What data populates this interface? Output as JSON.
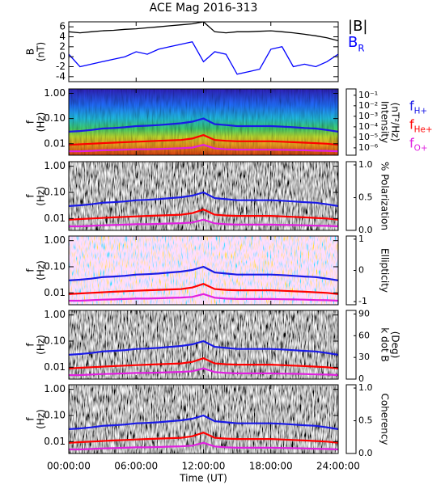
{
  "chart_data": [
    {
      "type": "line",
      "title": "ACE Mag 2016-313",
      "ylabel": [
        "B",
        "(nT)"
      ],
      "x": [
        0,
        1,
        2,
        3,
        4,
        5,
        6,
        7,
        8,
        9,
        10,
        11,
        12,
        13,
        14,
        15,
        16,
        17,
        18,
        19,
        20,
        21,
        22,
        23,
        24
      ],
      "ylim": [
        -5,
        7
      ],
      "yticks": [
        -4,
        -2,
        0,
        2,
        4,
        6
      ],
      "series": [
        {
          "name": "|B|",
          "color": "#000000",
          "values": [
            5,
            4.8,
            5,
            5.2,
            5.3,
            5.5,
            5.6,
            5.8,
            6,
            6.2,
            6.4,
            6.6,
            7,
            5,
            4.8,
            5,
            5,
            5.1,
            5.2,
            5,
            4.8,
            4.5,
            4.2,
            3.8,
            3.2
          ]
        },
        {
          "name": "B",
          "name_subscript": "R",
          "color": "#0000ff",
          "values": [
            0.5,
            -2,
            -1.5,
            -1,
            -0.5,
            0,
            1,
            0.5,
            1.5,
            2,
            2.5,
            3,
            -1,
            1,
            0.5,
            -3.5,
            -3,
            -2.5,
            1.5,
            2,
            -2,
            -1.5,
            -2,
            -1,
            0.5
          ]
        }
      ]
    },
    {
      "type": "spectrogram",
      "ylabel": [
        "f",
        "(Hz)"
      ],
      "ylog": true,
      "ylim": [
        0.0035,
        1.5
      ],
      "yticks": [
        {
          "value": 0.01,
          "label": "0.01"
        },
        {
          "value": 0.1,
          "label": "0.10"
        },
        {
          "value": 1,
          "label": "1.00"
        }
      ],
      "x": [
        0,
        1,
        2,
        3,
        4,
        5,
        6,
        7,
        8,
        9,
        10,
        11,
        12,
        13,
        14,
        15,
        16,
        17,
        18,
        19,
        20,
        21,
        22,
        23,
        24
      ],
      "series": [
        {
          "name": "f",
          "name_subscript": "H+",
          "color": "#1a1ae6",
          "values": [
            0.03,
            0.032,
            0.035,
            0.04,
            0.042,
            0.045,
            0.05,
            0.052,
            0.055,
            0.06,
            0.065,
            0.075,
            0.1,
            0.06,
            0.055,
            0.05,
            0.05,
            0.05,
            0.05,
            0.048,
            0.045,
            0.042,
            0.04,
            0.035,
            0.03
          ]
        },
        {
          "name": "f",
          "name_subscript": "He+",
          "color": "#ff0000",
          "values": [
            0.009,
            0.0095,
            0.01,
            0.0105,
            0.011,
            0.0115,
            0.012,
            0.0125,
            0.013,
            0.0135,
            0.014,
            0.016,
            0.022,
            0.014,
            0.013,
            0.0125,
            0.0125,
            0.0125,
            0.0125,
            0.012,
            0.0115,
            0.011,
            0.0105,
            0.01,
            0.009
          ]
        },
        {
          "name": "f",
          "name_subscript": "O+",
          "color": "#e020e0",
          "values": [
            0.005,
            0.005,
            0.0052,
            0.0055,
            0.0056,
            0.0058,
            0.006,
            0.006,
            0.0062,
            0.0064,
            0.0066,
            0.007,
            0.009,
            0.0065,
            0.006,
            0.0058,
            0.0058,
            0.0058,
            0.0058,
            0.0057,
            0.0056,
            0.0055,
            0.0053,
            0.0052,
            0.005
          ]
        }
      ],
      "colorbar": {
        "label": [
          "Intensity",
          "(nT²/Hz)"
        ],
        "colormap": "rainbow",
        "log": true,
        "clim": [
          2e-07,
          0.4
        ],
        "ticks": [
          {
            "value": 0.1,
            "label": "10⁻¹"
          },
          {
            "value": 0.01,
            "label": "10⁻²"
          },
          {
            "value": 0.001,
            "label": "10⁻³"
          },
          {
            "value": 0.0001,
            "label": "10⁻⁴"
          },
          {
            "value": 1e-05,
            "label": "10⁻⁵"
          },
          {
            "value": 1e-06,
            "label": "10⁻⁶"
          }
        ]
      }
    },
    {
      "type": "spectrogram",
      "ylabel": [
        "f",
        "(Hz)"
      ],
      "ylog": true,
      "ylim": [
        0.0035,
        1.5
      ],
      "yticks": [
        {
          "value": 0.01,
          "label": "0.01"
        },
        {
          "value": 0.1,
          "label": "0.10"
        },
        {
          "value": 1,
          "label": "1.00"
        }
      ],
      "colorbar": {
        "label": [
          "% Polarization"
        ],
        "colormap": "gray",
        "clim": [
          0,
          1.05
        ],
        "ticks": [
          {
            "value": 0,
            "label": "0.0"
          },
          {
            "value": 0.5,
            "label": "0.5"
          },
          {
            "value": 1,
            "label": "1.0"
          }
        ]
      }
    },
    {
      "type": "spectrogram",
      "ylabel": [
        "f",
        "(Hz)"
      ],
      "ylog": true,
      "ylim": [
        0.0035,
        1.5
      ],
      "yticks": [
        {
          "value": 0.01,
          "label": "0.01"
        },
        {
          "value": 0.1,
          "label": "0.10"
        },
        {
          "value": 1,
          "label": "1.00"
        }
      ],
      "colorbar": {
        "label": [
          "Ellipticity"
        ],
        "colormap": "bwr",
        "clim": [
          -1.1,
          1.1
        ],
        "ticks": [
          1,
          0,
          -1
        ]
      }
    },
    {
      "type": "spectrogram",
      "ylabel": [
        "f",
        "(Hz)"
      ],
      "ylog": true,
      "ylim": [
        0.0035,
        1.5
      ],
      "yticks": [
        {
          "value": 0.01,
          "label": "0.01"
        },
        {
          "value": 0.1,
          "label": "0.10"
        },
        {
          "value": 1,
          "label": "1.00"
        }
      ],
      "colorbar": {
        "label": [
          "k dot B",
          "(Deg)"
        ],
        "colormap": "gray",
        "clim": [
          0,
          95
        ],
        "ticks": [
          0,
          30,
          60,
          90
        ]
      }
    },
    {
      "type": "spectrogram",
      "ylabel": [
        "f",
        "(Hz)"
      ],
      "ylog": true,
      "ylim": [
        0.0035,
        1.5
      ],
      "yticks": [
        {
          "value": 0.01,
          "label": "0.01"
        },
        {
          "value": 0.1,
          "label": "0.10"
        },
        {
          "value": 1,
          "label": "1.00"
        }
      ],
      "colorbar": {
        "label": [
          "Coherency"
        ],
        "colormap": "gray",
        "clim": [
          0,
          1.05
        ],
        "ticks": [
          {
            "value": 0,
            "label": "0.0"
          },
          {
            "value": 0.5,
            "label": "0.5"
          },
          {
            "value": 1,
            "label": "1.0"
          }
        ]
      },
      "xlabel": "Time (UT)",
      "xlim": [
        0,
        24
      ],
      "xticks": [
        {
          "value": 0,
          "label": "00:00:00"
        },
        {
          "value": 6,
          "label": "06:00:00"
        },
        {
          "value": 12,
          "label": "12:00:00"
        },
        {
          "value": 18,
          "label": "18:00:00"
        },
        {
          "value": 24,
          "label": "24:00:00"
        }
      ]
    }
  ]
}
